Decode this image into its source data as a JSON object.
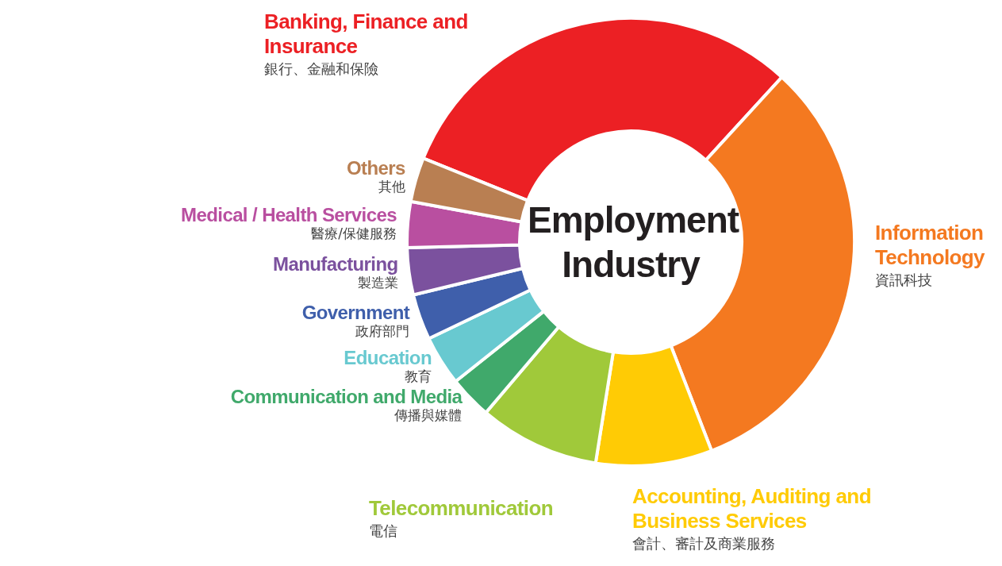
{
  "chart_data": {
    "type": "donut",
    "title": "Employment Industry",
    "categories": [
      "Banking, Finance and Insurance\n銀行、金融和保險",
      "Information Technology\n資訊科技",
      "Accounting, Auditing and Business Services\n會計、審計及商業服務",
      "Telecommunication\n電信",
      "Communication and Media\n傳播與媒體",
      "Education\n教育",
      "Government\n政府部門",
      "Manufacturing\n製造業",
      "Medical / Health Services\n醫療/保健服務",
      "Others\n其他"
    ],
    "values": [
      30.7,
      32.3,
      8.4,
      8.7,
      3.1,
      3.6,
      3.3,
      3.4,
      3.3,
      3.2
    ],
    "colors": [
      "#ec2024",
      "#f47920",
      "#ffcb05",
      "#a0c93a",
      "#40a96b",
      "#68c9d0",
      "#3f5fab",
      "#7b519e",
      "#b94fa0",
      "#b97f52"
    ]
  }
}
